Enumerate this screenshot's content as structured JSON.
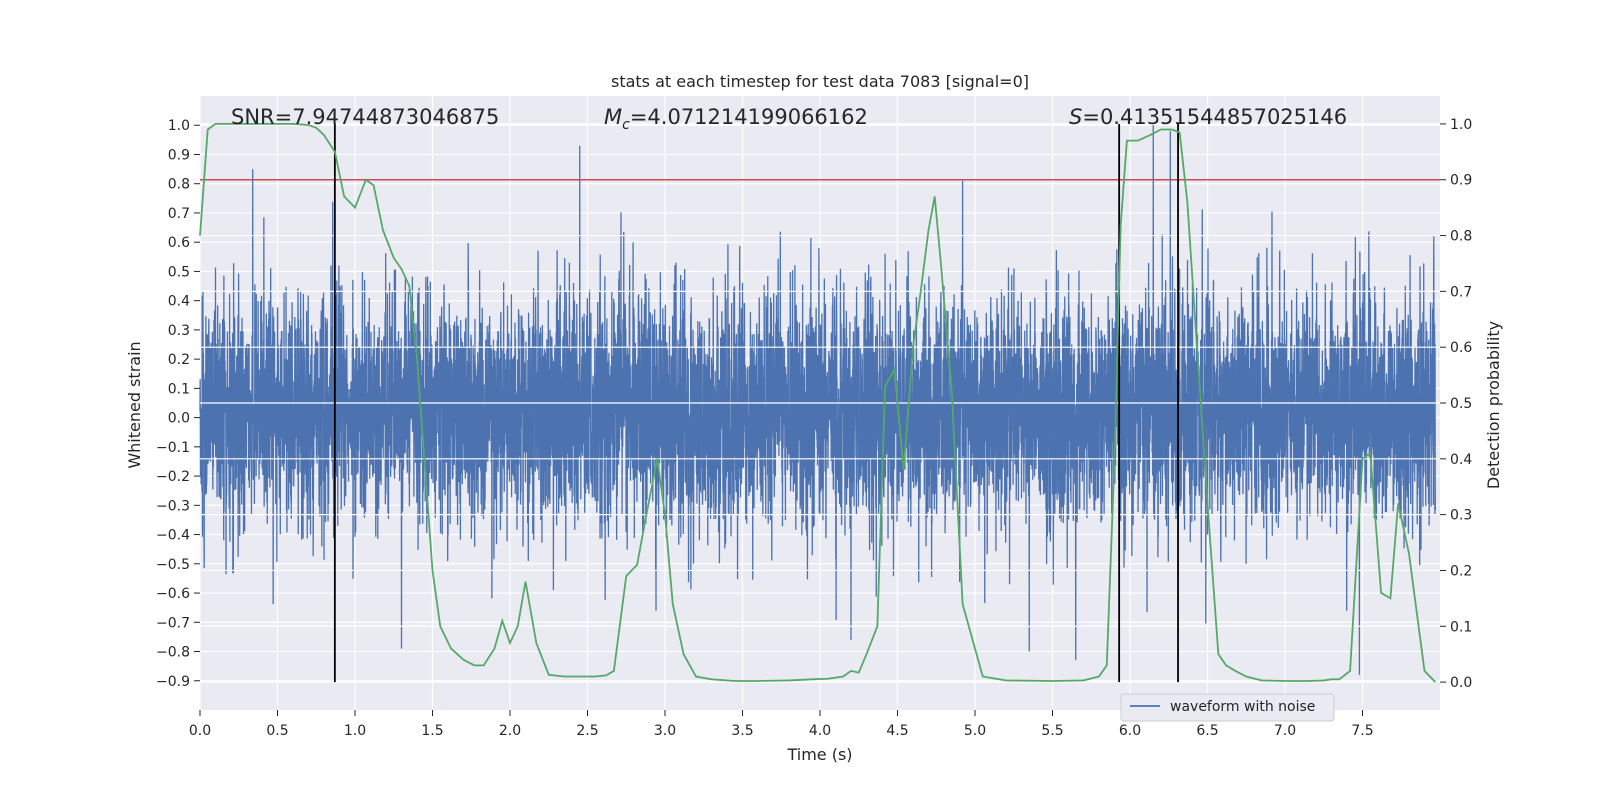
{
  "chart_data": {
    "type": "line",
    "title": "stats at each timestep for test data 7083 [signal=0]",
    "xlabel": "Time (s)",
    "ylabel": "Whitened strain",
    "y2label": "Detection probability",
    "xlim": [
      0.0,
      8.0
    ],
    "ylim": [
      -1.0,
      1.1
    ],
    "y2lim": [
      -0.05,
      1.05
    ],
    "xticks": [
      0.0,
      0.5,
      1.0,
      1.5,
      2.0,
      2.5,
      3.0,
      3.5,
      4.0,
      4.5,
      5.0,
      5.5,
      6.0,
      6.5,
      7.0,
      7.5
    ],
    "yticks": [
      -0.9,
      -0.8,
      -0.7,
      -0.6,
      -0.5,
      -0.4,
      -0.3,
      -0.2,
      -0.1,
      0.0,
      0.1,
      0.2,
      0.3,
      0.4,
      0.5,
      0.6,
      0.7,
      0.8,
      0.9,
      1.0
    ],
    "y2ticks": [
      0.0,
      0.1,
      0.2,
      0.3,
      0.4,
      0.5,
      0.6,
      0.7,
      0.8,
      0.9,
      1.0
    ],
    "grid": true,
    "legend": {
      "location": "lower-right",
      "entries": [
        "waveform with noise"
      ]
    },
    "annotations": {
      "snr": "SNR=7.94744873046875",
      "mc_symbol": "M",
      "mc_sub": "c",
      "mc_value": "=4.071214199066162",
      "s_symbol": "S",
      "s_value": "=0.41351544857025146"
    },
    "threshold": {
      "value": 0.9,
      "axis": "right",
      "color": "#c44e52"
    },
    "vertical_lines": [
      0.87,
      5.93,
      6.31
    ],
    "waveform": {
      "name": "waveform with noise",
      "color": "#4c72b0",
      "samples": 8000,
      "seed": 7083,
      "typical_band": [
        -0.33,
        0.38
      ],
      "peaks_high": [
        [
          0.34,
          0.85
        ],
        [
          2.45,
          0.93
        ],
        [
          4.92,
          0.81
        ],
        [
          6.15,
          1.0
        ],
        [
          6.26,
          0.98
        ],
        [
          7.96,
          0.62
        ]
      ],
      "peaks_low": [
        [
          1.3,
          -0.79
        ],
        [
          4.2,
          -0.76
        ],
        [
          5.35,
          -0.8
        ],
        [
          5.65,
          -0.83
        ],
        [
          7.48,
          -0.88
        ]
      ]
    },
    "series": [
      {
        "name": "Detection probability",
        "axis": "right",
        "color": "#55a868",
        "x": [
          0.0,
          0.05,
          0.1,
          0.2,
          0.4,
          0.6,
          0.7,
          0.75,
          0.8,
          0.87,
          0.93,
          1.0,
          1.07,
          1.12,
          1.18,
          1.25,
          1.3,
          1.35,
          1.4,
          1.5,
          1.55,
          1.62,
          1.7,
          1.77,
          1.83,
          1.9,
          1.95,
          2.0,
          2.05,
          2.1,
          2.17,
          2.25,
          2.35,
          2.45,
          2.55,
          2.62,
          2.67,
          2.75,
          2.82,
          2.88,
          2.95,
          3.0,
          3.05,
          3.12,
          3.2,
          3.3,
          3.45,
          3.6,
          3.8,
          3.95,
          4.05,
          4.15,
          4.2,
          4.25,
          4.3,
          4.37,
          4.42,
          4.48,
          4.54,
          4.6,
          4.65,
          4.7,
          4.74,
          4.78,
          4.85,
          4.92,
          4.97,
          5.05,
          5.2,
          5.5,
          5.7,
          5.8,
          5.85,
          5.9,
          5.94,
          5.98,
          6.05,
          6.13,
          6.2,
          6.27,
          6.32,
          6.37,
          6.42,
          6.5,
          6.57,
          6.62,
          6.68,
          6.75,
          6.85,
          7.0,
          7.15,
          7.25,
          7.3,
          7.35,
          7.42,
          7.5,
          7.55,
          7.62,
          7.68,
          7.73,
          7.8,
          7.9,
          7.97
        ],
        "values": [
          0.8,
          0.99,
          1.0,
          1.0,
          1.0,
          1.0,
          0.998,
          0.993,
          0.98,
          0.95,
          0.87,
          0.85,
          0.9,
          0.89,
          0.81,
          0.76,
          0.74,
          0.71,
          0.58,
          0.2,
          0.1,
          0.06,
          0.04,
          0.03,
          0.03,
          0.06,
          0.11,
          0.07,
          0.1,
          0.18,
          0.07,
          0.013,
          0.01,
          0.01,
          0.01,
          0.012,
          0.02,
          0.19,
          0.21,
          0.3,
          0.4,
          0.3,
          0.14,
          0.05,
          0.01,
          0.005,
          0.002,
          0.002,
          0.003,
          0.005,
          0.006,
          0.01,
          0.02,
          0.017,
          0.05,
          0.1,
          0.53,
          0.56,
          0.38,
          0.6,
          0.7,
          0.81,
          0.87,
          0.75,
          0.52,
          0.14,
          0.09,
          0.01,
          0.003,
          0.002,
          0.003,
          0.01,
          0.03,
          0.4,
          0.82,
          0.97,
          0.97,
          0.98,
          0.99,
          0.99,
          0.985,
          0.86,
          0.65,
          0.32,
          0.05,
          0.03,
          0.02,
          0.01,
          0.003,
          0.002,
          0.002,
          0.003,
          0.005,
          0.005,
          0.02,
          0.4,
          0.41,
          0.16,
          0.15,
          0.32,
          0.23,
          0.02,
          0.0
        ]
      }
    ]
  }
}
